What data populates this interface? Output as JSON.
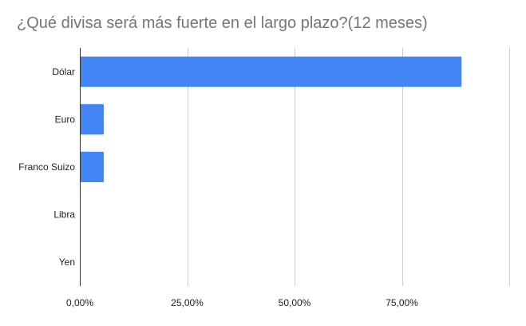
{
  "chart_data": {
    "type": "bar",
    "orientation": "horizontal",
    "title": "¿Qué divisa será más fuerte en el largo plazo?(12 meses)",
    "categories": [
      "Dólar",
      "Euro",
      "Franco Suizo",
      "Libra",
      "Yen"
    ],
    "values": [
      0.889,
      0.056,
      0.056,
      0,
      0
    ],
    "xlim": [
      0,
      1.0
    ],
    "xticks": [
      0,
      0.25,
      0.5,
      0.75
    ],
    "xtick_labels": [
      "0,00%",
      "25,00%",
      "50,00%",
      "75,00%"
    ],
    "grid": true,
    "legend": "none",
    "colors": {
      "bar": "#4285f4",
      "grid": "#cccccc",
      "axis": "#333333",
      "title": "#757575"
    }
  }
}
